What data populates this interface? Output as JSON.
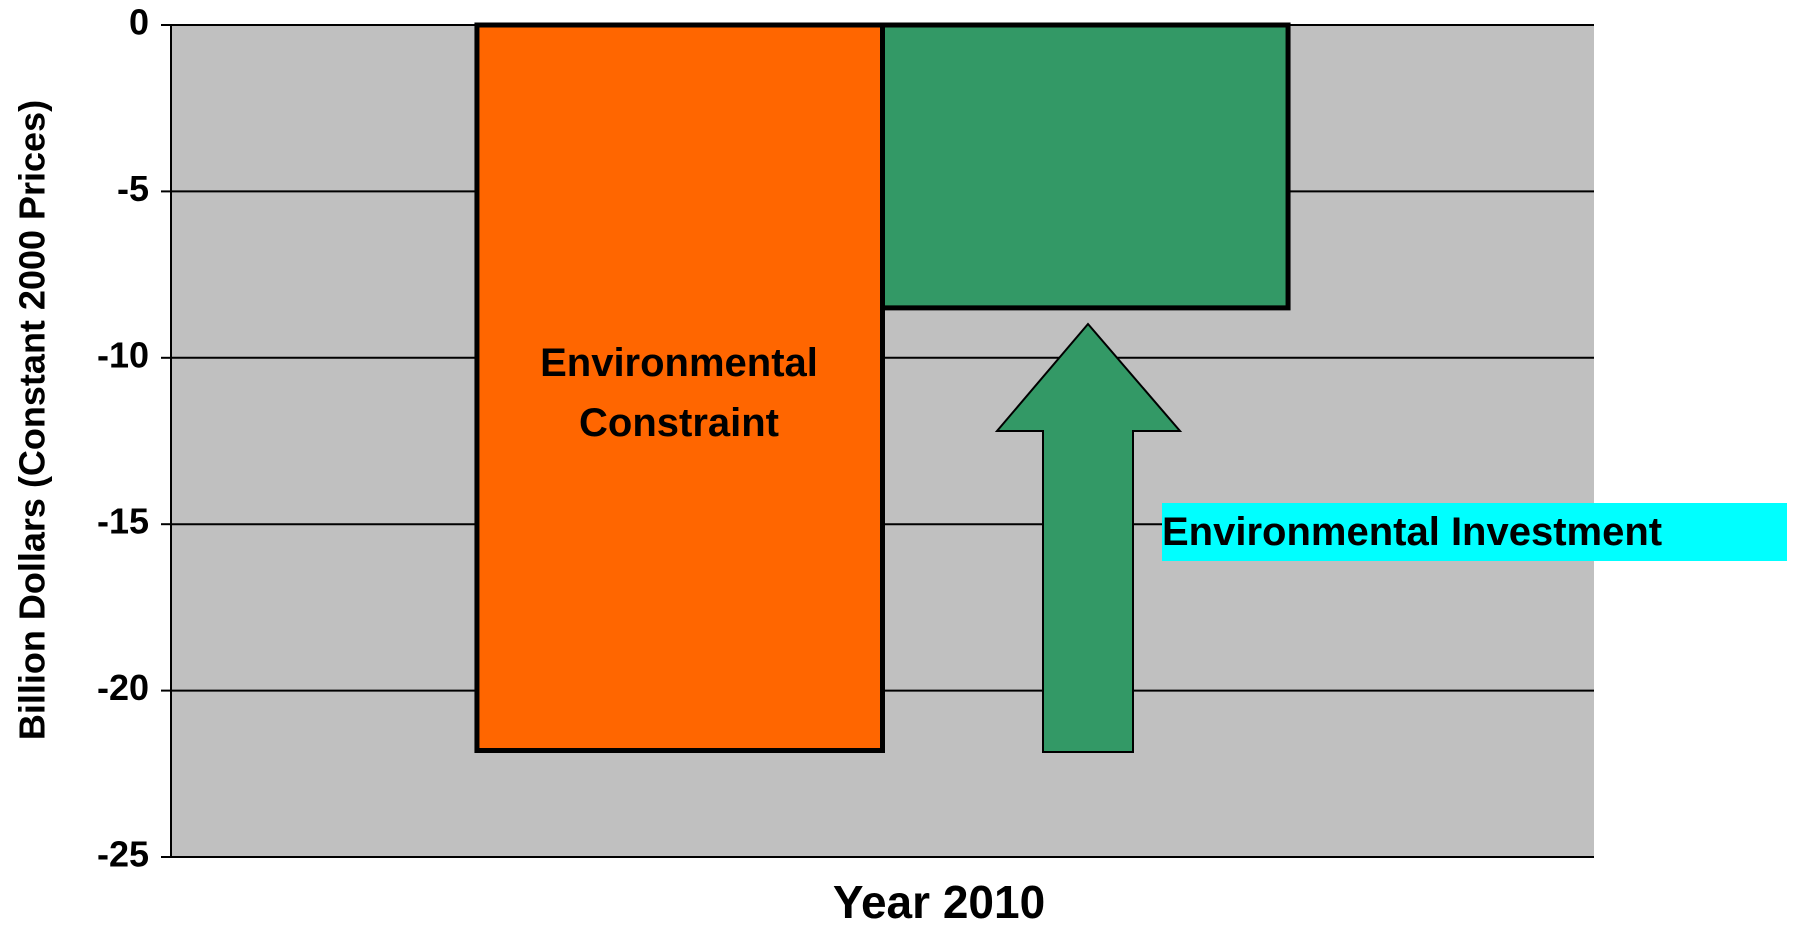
{
  "chart_data": {
    "type": "bar",
    "categories": [
      null
    ],
    "x_label": "Year 2010",
    "y_label": "Billion Dollars (Constant 2000 Prices)",
    "series": [
      {
        "name": "Environmental Constraint",
        "color": "#ff6600",
        "values": [
          -21.8
        ]
      },
      {
        "name": "Environmental Investment",
        "color": "#339966",
        "values": [
          -8.5
        ]
      }
    ],
    "ylim": [
      -25,
      0
    ],
    "yticks": [
      0,
      -5,
      -10,
      -15,
      -20,
      -25
    ],
    "grid": true,
    "plot_background": "#c0c0c0"
  }
}
